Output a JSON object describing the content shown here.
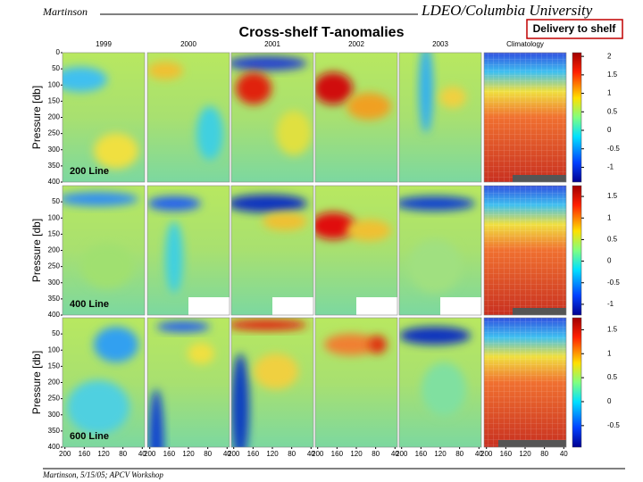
{
  "header": {
    "author": "Martinson",
    "institution": "LDEO/Columbia University",
    "title": "Cross-shelf T-anomalies",
    "button": "Delivery to shelf"
  },
  "footer": "Martinson, 5/15/05; APCV Workshop",
  "columns": [
    "1999",
    "2000",
    "2001",
    "2002",
    "2003",
    "Climatology"
  ],
  "x_ticks": [
    200,
    160,
    120,
    80,
    40
  ],
  "xlim": [
    205,
    35
  ],
  "rows": [
    {
      "label": "200 Line",
      "y_axis_label": "Pressure [db]",
      "ylim": [
        0,
        400
      ],
      "y_ticks": [
        0,
        50,
        100,
        150,
        200,
        250,
        300,
        350,
        400
      ],
      "colorbar_lim": [
        -1.4,
        2.1
      ],
      "colorbar_ticks": [
        2,
        1.5,
        1,
        0.5,
        0,
        -0.5,
        -1
      ]
    },
    {
      "label": "400 Line",
      "y_axis_label": "Pressure [db]",
      "ylim": [
        0,
        400
      ],
      "y_ticks": [
        50,
        100,
        150,
        200,
        250,
        300,
        350,
        400
      ],
      "colorbar_lim": [
        -1.25,
        1.75
      ],
      "colorbar_ticks": [
        1.5,
        1,
        0.5,
        0,
        -0.5,
        -1
      ]
    },
    {
      "label": "600 Line",
      "y_axis_label": "Pressure [db]",
      "ylim": [
        0,
        400
      ],
      "y_ticks": [
        50,
        100,
        150,
        200,
        250,
        300,
        350,
        400
      ],
      "colorbar_lim": [
        -0.95,
        1.75
      ],
      "colorbar_ticks": [
        1.5,
        1,
        0.5,
        0,
        -0.5
      ]
    }
  ]
}
